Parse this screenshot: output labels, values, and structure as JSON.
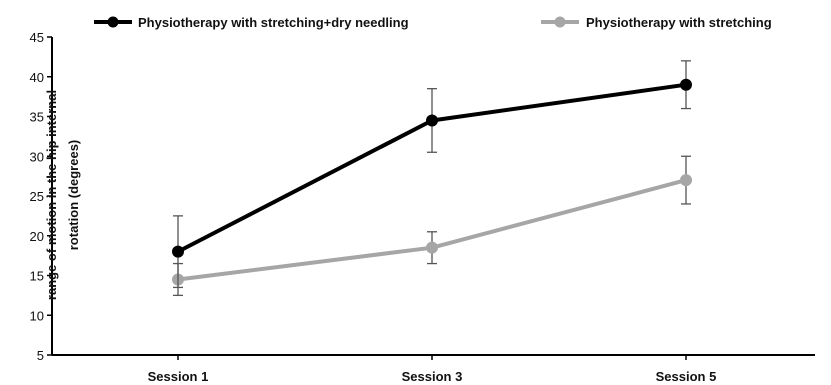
{
  "chart_data": {
    "type": "line",
    "categories": [
      "Session 1",
      "Session 3",
      "Session 5"
    ],
    "ylabel": [
      "range of motion in the hip internal",
      "rotation (degrees)"
    ],
    "ylim": [
      5,
      45
    ],
    "yticks": [
      5,
      10,
      15,
      20,
      25,
      30,
      35,
      40,
      45
    ],
    "grid": false,
    "legend_position": "top",
    "series": [
      {
        "name": "Physiotherapy with stretching+dry needling",
        "values": [
          18,
          34.5,
          39
        ],
        "error": [
          4.5,
          4,
          3
        ],
        "color": "#000000"
      },
      {
        "name": "Physiotherapy with stretching",
        "values": [
          14.5,
          18.5,
          27
        ],
        "error": [
          2,
          2,
          3
        ],
        "color": "#a6a6a6"
      }
    ]
  }
}
